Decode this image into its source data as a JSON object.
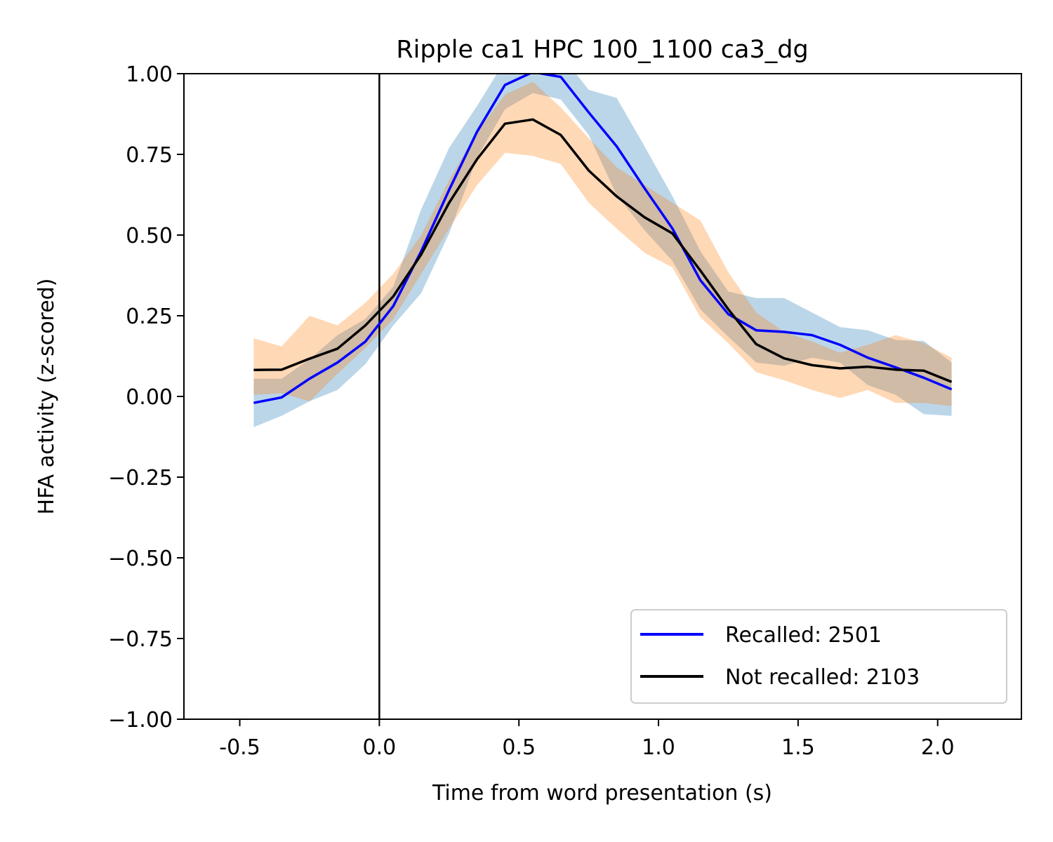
{
  "chart_data": {
    "type": "line",
    "title": "Ripple ca1 HPC 100_1100 ca3_dg",
    "xlabel": "Time from word presentation (s)",
    "ylabel": "HFA activity (z-scored)",
    "xlim": [
      -0.7,
      2.3
    ],
    "ylim": [
      -1.0,
      1.0
    ],
    "x_ticks": [
      -0.5,
      0.0,
      0.5,
      1.0,
      1.5,
      2.0
    ],
    "x_tick_labels": [
      "-0.5",
      "0.0",
      "0.5",
      "1.0",
      "1.5",
      "2.0"
    ],
    "y_ticks": [
      1.0,
      0.75,
      0.5,
      0.25,
      0.0,
      -0.25,
      -0.5,
      -0.75,
      -1.0
    ],
    "y_tick_labels": [
      "1.00",
      "0.75",
      "0.50",
      "0.25",
      "0.00",
      "−0.25",
      "−0.50",
      "−0.75",
      "−1.00"
    ],
    "vertical_line_x": 0.0,
    "grid": false,
    "legend_position": "bottom-right",
    "x": [
      -0.45,
      -0.35,
      -0.25,
      -0.15,
      -0.05,
      0.05,
      0.15,
      0.25,
      0.35,
      0.45,
      0.55,
      0.65,
      0.75,
      0.85,
      0.95,
      1.05,
      1.15,
      1.25,
      1.35,
      1.45,
      1.55,
      1.65,
      1.75,
      1.85,
      1.95,
      2.05
    ],
    "series": [
      {
        "name": "Recalled: 2501",
        "color": "#0000ff",
        "band_color": "#1f77b4",
        "values": [
          -0.02,
          -0.003,
          0.055,
          0.105,
          0.17,
          0.28,
          0.45,
          0.64,
          0.82,
          0.965,
          1.005,
          0.99,
          0.88,
          0.775,
          0.645,
          0.52,
          0.36,
          0.255,
          0.205,
          0.2,
          0.19,
          0.16,
          0.12,
          0.09,
          0.058,
          0.022
        ],
        "upper": [
          0.055,
          0.055,
          0.115,
          0.19,
          0.24,
          0.34,
          0.58,
          0.77,
          0.9,
          1.04,
          1.07,
          1.06,
          0.95,
          0.925,
          0.775,
          0.62,
          0.45,
          0.325,
          0.305,
          0.305,
          0.26,
          0.215,
          0.205,
          0.175,
          0.172,
          0.105
        ],
        "lower": [
          -0.095,
          -0.06,
          -0.015,
          0.02,
          0.1,
          0.22,
          0.32,
          0.505,
          0.74,
          0.89,
          0.94,
          0.92,
          0.81,
          0.625,
          0.515,
          0.42,
          0.27,
          0.185,
          0.105,
          0.095,
          0.12,
          0.105,
          0.035,
          0.005,
          -0.055,
          -0.06
        ]
      },
      {
        "name": "Not recalled: 2103",
        "color": "#000000",
        "band_color": "#ff7f0e",
        "values": [
          0.082,
          0.083,
          0.117,
          0.148,
          0.22,
          0.31,
          0.44,
          0.6,
          0.735,
          0.845,
          0.858,
          0.81,
          0.7,
          0.62,
          0.555,
          0.505,
          0.39,
          0.27,
          0.162,
          0.118,
          0.097,
          0.087,
          0.092,
          0.083,
          0.08,
          0.045
        ],
        "upper": [
          0.18,
          0.155,
          0.25,
          0.22,
          0.29,
          0.38,
          0.5,
          0.67,
          0.82,
          0.935,
          0.975,
          0.895,
          0.8,
          0.71,
          0.655,
          0.6,
          0.545,
          0.385,
          0.26,
          0.2,
          0.17,
          0.135,
          0.16,
          0.19,
          0.165,
          0.12
        ],
        "lower": [
          0.005,
          0.01,
          -0.015,
          0.07,
          0.15,
          0.24,
          0.38,
          0.52,
          0.655,
          0.755,
          0.745,
          0.72,
          0.6,
          0.52,
          0.445,
          0.4,
          0.245,
          0.165,
          0.075,
          0.05,
          0.02,
          -0.005,
          0.02,
          -0.02,
          -0.02,
          -0.03
        ]
      }
    ]
  }
}
